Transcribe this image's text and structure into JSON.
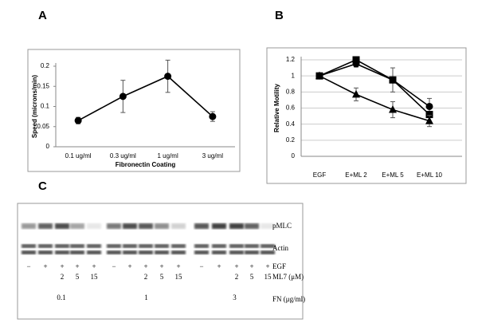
{
  "panel_labels": [
    "A",
    "B",
    "C"
  ],
  "chart_data": [
    {
      "type": "line",
      "y_label": "Speed (microns/min)",
      "x_label": "Fibronectin Coating",
      "categories": [
        "0.1 ug/ml",
        "0.3 ug/ml",
        "1 ug/ml",
        "3 ug/ml"
      ],
      "series": [
        {
          "color": "#000000",
          "marker": "circle",
          "values": [
            0.065,
            0.125,
            0.175,
            0.075
          ],
          "errors": [
            0.008,
            0.04,
            0.04,
            0.012
          ]
        }
      ],
      "ylim": [
        0,
        0.2
      ],
      "yticks": [
        0,
        0.05,
        0.1,
        0.15,
        0.2
      ],
      "grid": false
    },
    {
      "type": "line",
      "y_label": "Relative Motility",
      "categories": [
        "EGF",
        "E+ML 2",
        "E+ML 5",
        "E+ML 10"
      ],
      "series": [
        {
          "color": "#000000",
          "marker": "circle",
          "values": [
            1,
            1.15,
            0.95,
            0.62
          ],
          "errors": [
            null,
            0.04,
            null,
            0.1
          ]
        },
        {
          "color": "#000000",
          "marker": "square",
          "values": [
            1,
            1.2,
            0.95,
            0.52
          ],
          "errors": [
            null,
            null,
            0.15,
            null
          ]
        },
        {
          "color": "#000000",
          "marker": "triangle",
          "values": [
            1,
            0.77,
            0.58,
            0.44
          ],
          "errors": [
            null,
            0.08,
            0.1,
            0.07
          ]
        }
      ],
      "ylim": [
        0,
        1.2
      ],
      "yticks": [
        0,
        0.2,
        0.4,
        0.6,
        0.8,
        1,
        1.2
      ],
      "grid": true
    }
  ],
  "blot": {
    "row_labels": [
      "pMLC",
      "Actin",
      "EGF",
      "ML7 (μM)",
      "FN (μg/ml)"
    ],
    "groups": [
      {
        "fn": "0.1",
        "egf": [
          "−",
          "+",
          "+",
          "+",
          "+"
        ],
        "ml7": [
          "2",
          "5",
          "15"
        ]
      },
      {
        "fn": "1",
        "egf": [
          "−",
          "+",
          "+",
          "+",
          "+"
        ],
        "ml7": [
          "2",
          "5",
          "15"
        ]
      },
      {
        "fn": "3",
        "egf": [
          "−",
          "+",
          "+",
          "+",
          "+"
        ],
        "ml7": [
          "2",
          "5",
          "15"
        ]
      }
    ]
  }
}
